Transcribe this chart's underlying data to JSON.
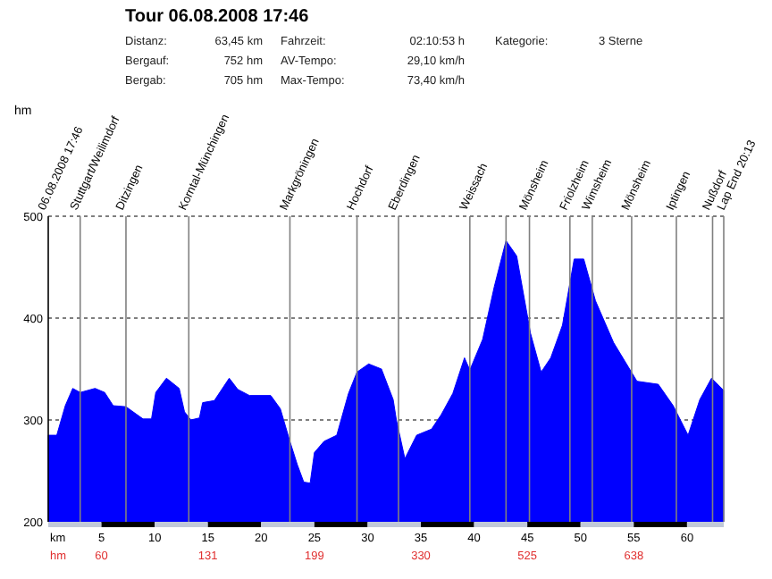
{
  "chart_data": {
    "type": "area",
    "title": "Tour 06.08.2008 17:46",
    "xlabel": "km",
    "annotations": [
      "Distanz:",
      "63,45 km",
      "Fahrzeit:",
      "02:10:53 h",
      "Kategorie:",
      "3 Sterne",
      "Bergauf:",
      "752 hm",
      "AV-Tempo:",
      "29,10 km/h",
      "Bergab:",
      "705 hm",
      "Max-Tempo:",
      "73,40 km/h",
      "hm",
      "hm",
      "60",
      "131",
      "199",
      "330",
      "525",
      "638",
      "06.08.2008 17:46",
      "Lap End 20:13"
    ],
    "x": [
      0,
      0.8,
      1.6,
      2.3,
      3.0,
      4.4,
      5.3,
      6.1,
      7.3,
      8.9,
      9.7,
      10.1,
      11.1,
      12.3,
      12.8,
      13.4,
      14.2,
      14.5,
      15.6,
      17.0,
      17.8,
      18.9,
      20.9,
      21.8,
      22.7,
      23.4,
      24.0,
      24.6,
      25.0,
      25.9,
      27.1,
      28.2,
      29.0,
      30.1,
      31.3,
      32.4,
      32.7,
      33.5,
      34.6,
      36.0,
      36.9,
      38.0,
      39.1,
      39.6,
      40.8,
      41.9,
      43.0,
      44.0,
      45.3,
      46.3,
      47.2,
      48.3,
      49.4,
      50.3,
      51.4,
      53.1,
      55.3,
      57.3,
      58.7,
      60.1,
      61.2,
      62.3,
      63.45
    ],
    "series": [
      {
        "color": "#0000ff",
        "values": [
          285,
          285,
          314,
          331,
          327,
          331,
          327,
          314,
          313,
          301,
          301,
          327,
          341,
          331,
          308,
          300,
          302,
          317,
          319,
          341,
          330,
          324,
          324,
          311,
          279,
          256,
          239,
          238,
          268,
          279,
          285,
          326,
          347,
          355,
          350,
          320,
          300,
          262,
          285,
          291,
          305,
          326,
          361,
          349,
          379,
          431,
          476,
          461,
          385,
          347,
          361,
          393,
          458,
          458,
          417,
          376,
          338,
          335,
          314,
          285,
          320,
          341,
          329
        ]
      }
    ],
    "xlim": [
      0,
      63.45
    ],
    "xticks": [
      5,
      10,
      15,
      20,
      25,
      30,
      35,
      40,
      45,
      50,
      55,
      60
    ],
    "ylim": [
      200,
      500
    ],
    "yticks": [
      200,
      300,
      400,
      500
    ],
    "grid": "y",
    "ref_lines": [
      {
        "axis": "x",
        "value": 3.0,
        "label": "Stuttgart/Weilimdorf",
        "color": "#808080"
      },
      {
        "axis": "x",
        "value": 7.3,
        "label": "Ditzingen",
        "color": "#808080"
      },
      {
        "axis": "x",
        "value": 13.2,
        "label": "Korntal-Münchingen",
        "color": "#808080"
      },
      {
        "axis": "x",
        "value": 22.7,
        "label": "Markgröningen",
        "color": "#808080"
      },
      {
        "axis": "x",
        "value": 29.0,
        "label": "Hochdorf",
        "color": "#808080"
      },
      {
        "axis": "x",
        "value": 32.9,
        "label": "Eberdingen",
        "color": "#808080"
      },
      {
        "axis": "x",
        "value": 39.6,
        "label": "Weissach",
        "color": "#808080"
      },
      {
        "axis": "x",
        "value": 43.0,
        "label": null,
        "color": "#808080"
      },
      {
        "axis": "x",
        "value": 45.2,
        "label": "Mönsheim",
        "color": "#808080"
      },
      {
        "axis": "x",
        "value": 49.0,
        "label": "Friolzheim",
        "color": "#808080"
      },
      {
        "axis": "x",
        "value": 51.1,
        "label": "Wimsheim",
        "color": "#808080"
      },
      {
        "axis": "x",
        "value": 54.8,
        "label": "Mönsheim",
        "color": "#808080"
      },
      {
        "axis": "x",
        "value": 59.0,
        "label": "Iptingen",
        "color": "#808080"
      },
      {
        "axis": "x",
        "value": 62.4,
        "label": "Nußdorf",
        "color": "#808080"
      }
    ]
  }
}
